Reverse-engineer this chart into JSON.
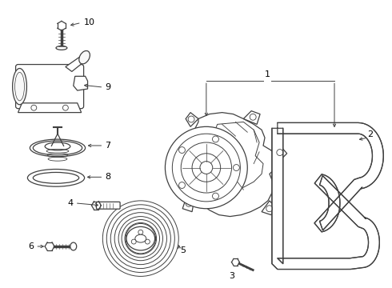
{
  "bg_color": "#ffffff",
  "line_color": "#404040",
  "label_color": "#000000",
  "lw": 0.9,
  "figsize": [
    4.9,
    3.6
  ],
  "dpi": 100
}
